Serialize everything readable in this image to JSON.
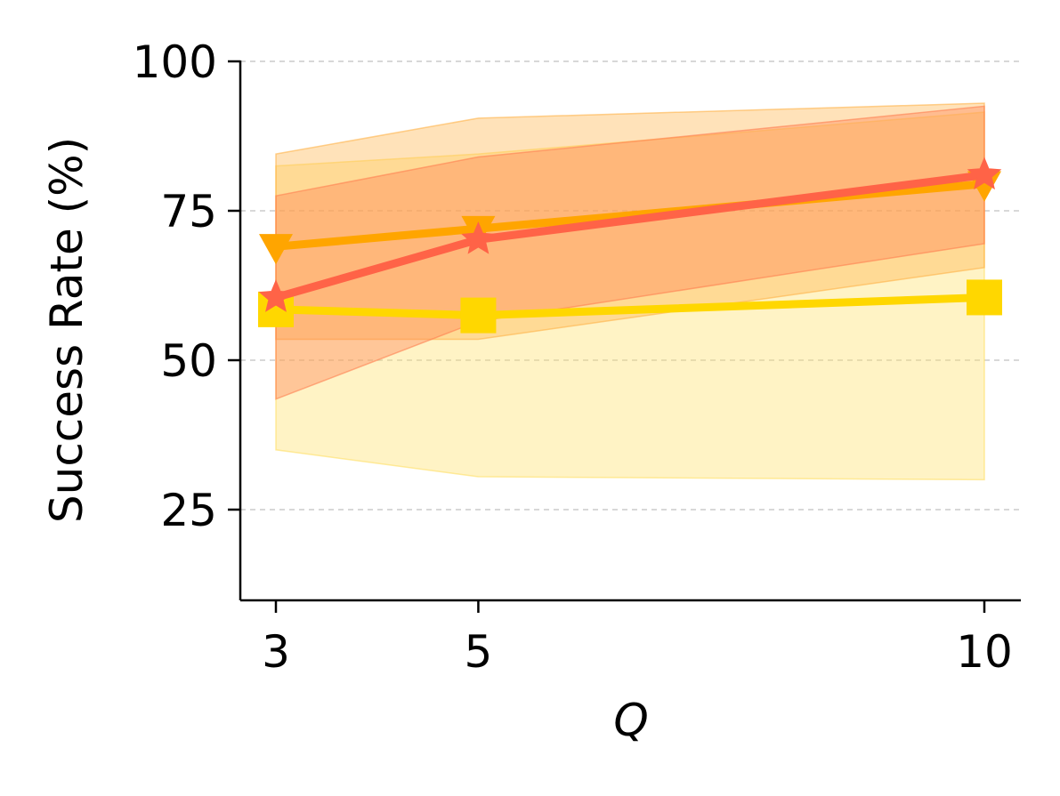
{
  "chart_data": {
    "type": "line",
    "title": "",
    "xlabel": "Q",
    "ylabel": "Success Rate (%)",
    "x": [
      3,
      5,
      10
    ],
    "xticks": [
      3,
      5,
      10
    ],
    "xtick_labels": [
      "3",
      "5",
      "10"
    ],
    "yticks": [
      25,
      50,
      75,
      100
    ],
    "ytick_labels": [
      "25",
      "50",
      "75",
      "100"
    ],
    "xlim": [
      2.65,
      10.35
    ],
    "ylim": [
      10,
      100
    ],
    "grid": {
      "axis": "y",
      "style": "dashed",
      "visible": true
    },
    "legend": "none",
    "series": [
      {
        "marker": "star",
        "color": "#FF6347",
        "values": [
          60.5,
          70.2,
          81.0
        ],
        "band_upper": [
          77.5,
          84.0,
          92.5
        ],
        "band_lower": [
          43.5,
          56.5,
          69.5
        ],
        "band_color": "#FF7F50"
      },
      {
        "marker": "triangle-down",
        "color": "#FFA500",
        "values": [
          69.0,
          72.0,
          79.5
        ],
        "band_upper": [
          84.5,
          90.5,
          93.0
        ],
        "band_lower": [
          53.5,
          53.5,
          65.5
        ],
        "band_color": "#FFB347"
      },
      {
        "marker": "square",
        "color": "#FFD700",
        "values": [
          58.5,
          57.5,
          60.5
        ],
        "band_upper": [
          82.5,
          84.5,
          91.5
        ],
        "band_lower": [
          35.0,
          30.5,
          30.0
        ],
        "band_color": "#FFE066"
      }
    ]
  }
}
